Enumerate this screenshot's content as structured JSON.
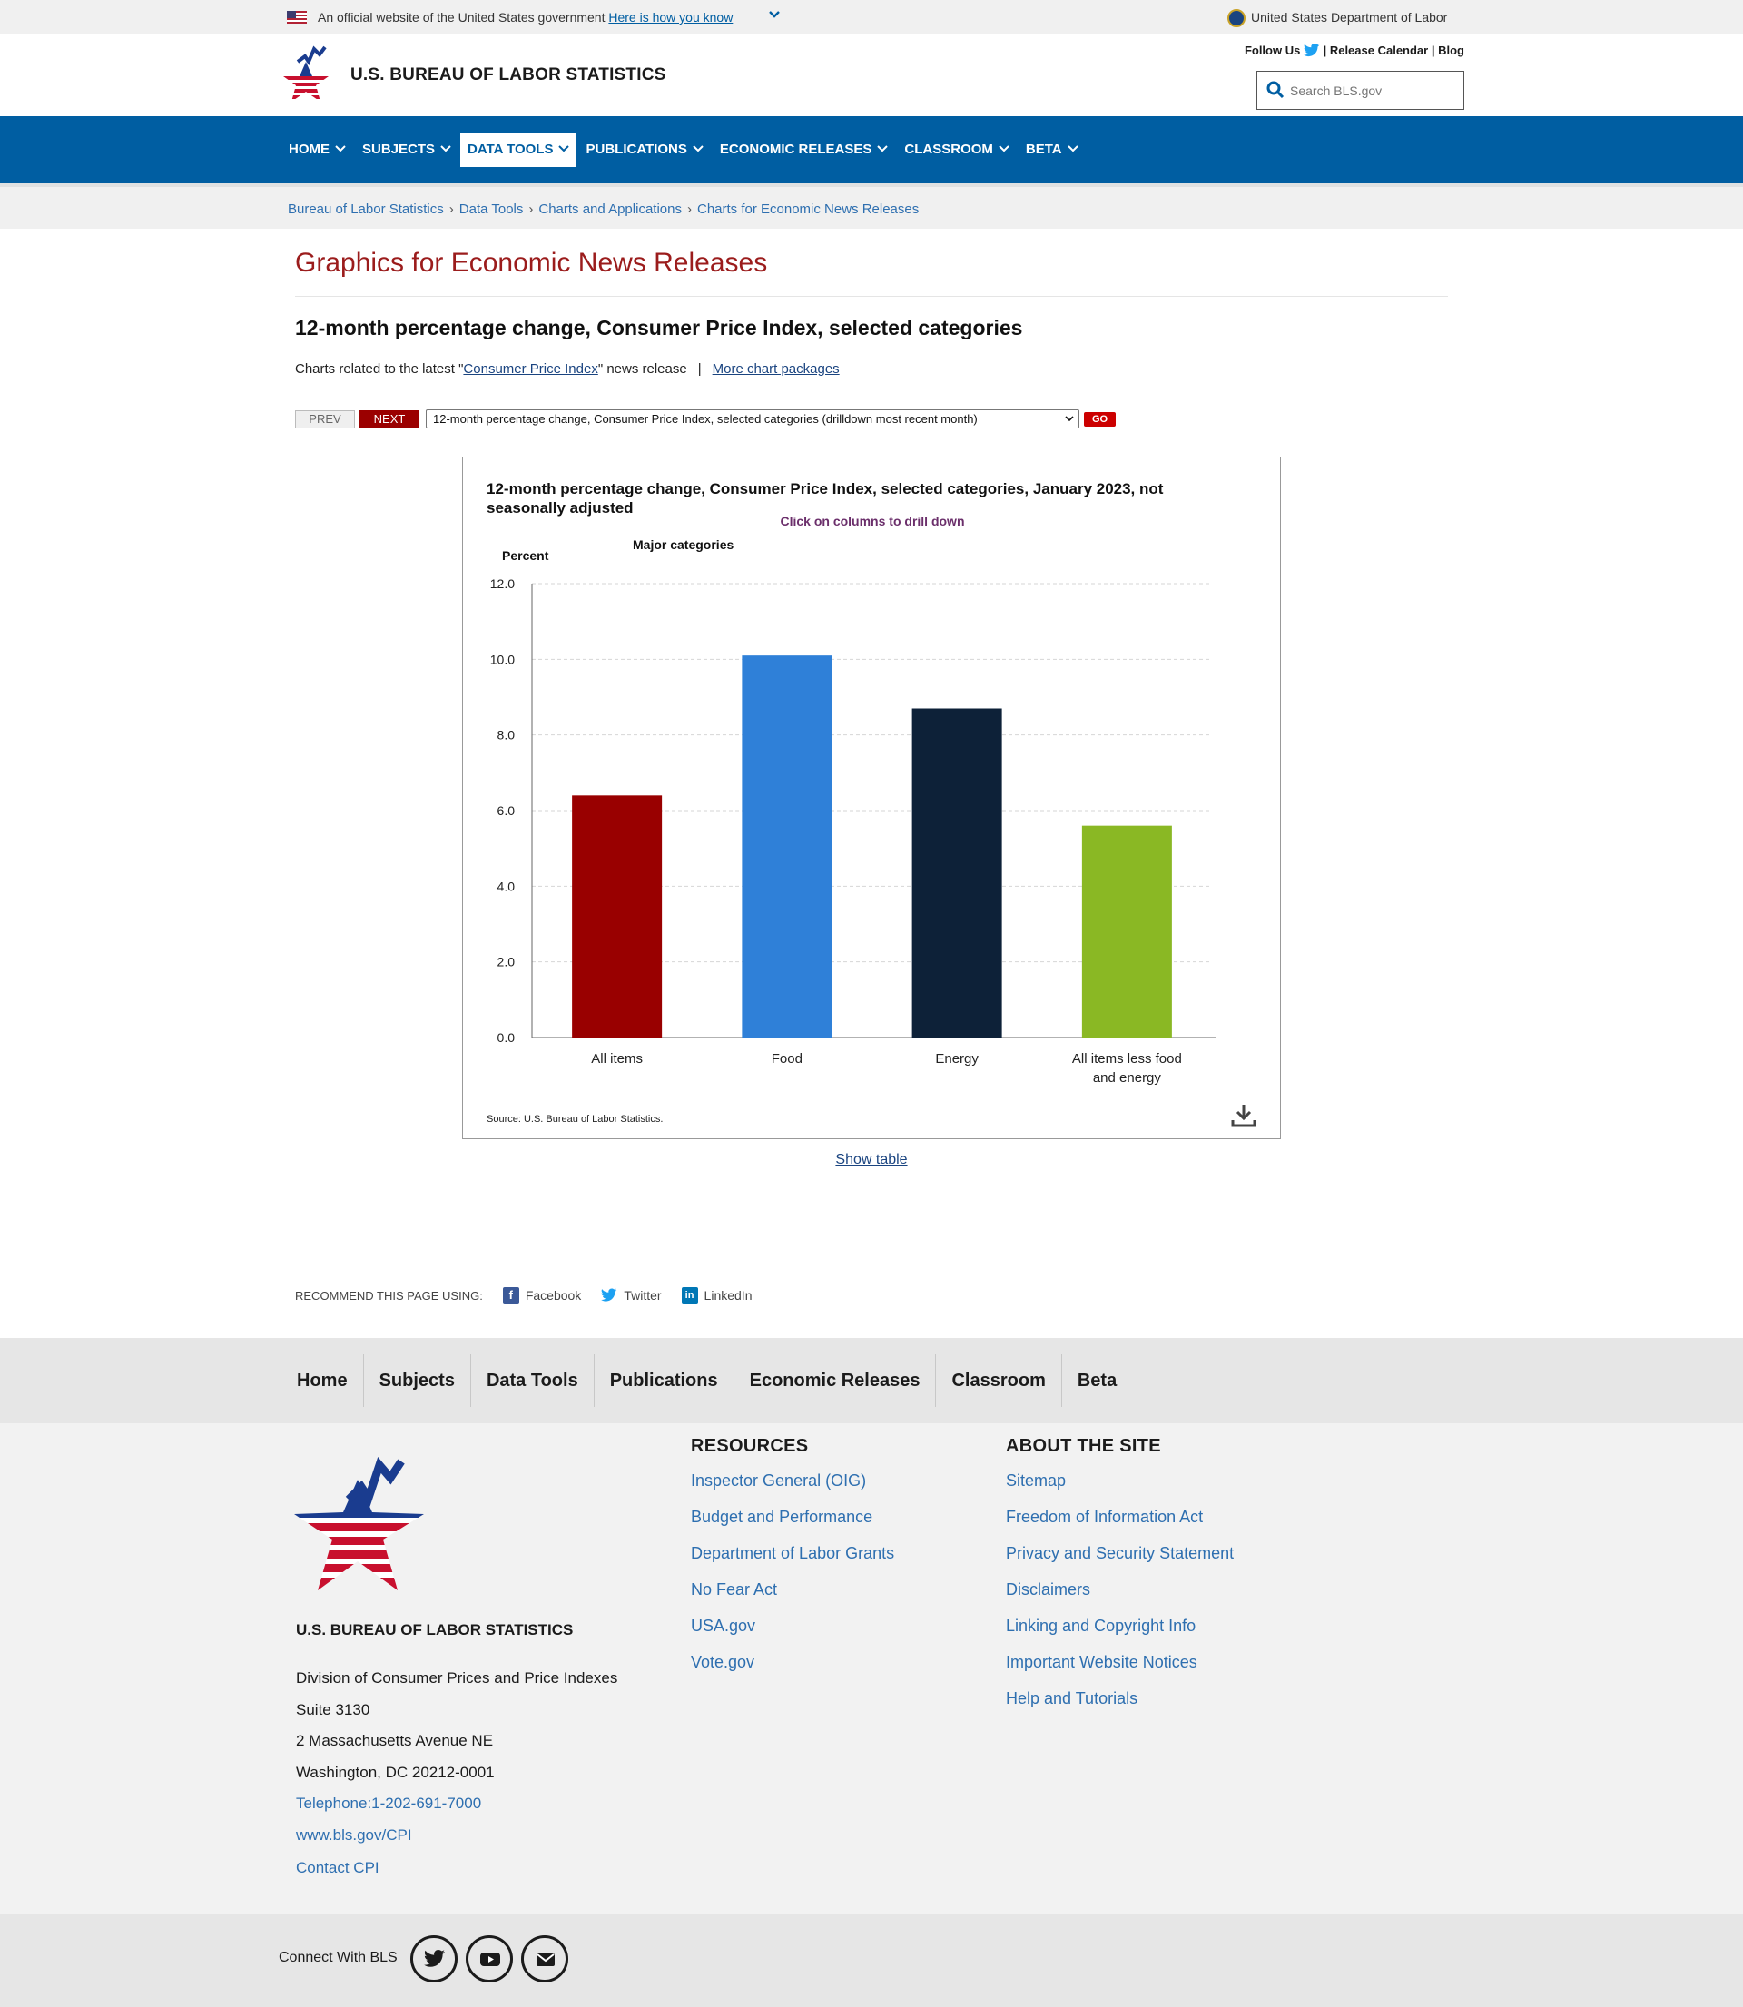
{
  "gov_banner": {
    "official": "An official website of the United States government",
    "how_link": "Here is how you know",
    "department": "United States Department of Labor"
  },
  "header": {
    "site_title": "U.S. BUREAU OF LABOR STATISTICS",
    "follow_us": "Follow Us",
    "release_calendar": "Release Calendar",
    "blog": "Blog",
    "search_placeholder": "Search BLS.gov"
  },
  "nav": {
    "items": [
      {
        "label": "HOME",
        "active": false
      },
      {
        "label": "SUBJECTS",
        "active": false
      },
      {
        "label": "DATA TOOLS",
        "active": true
      },
      {
        "label": "PUBLICATIONS",
        "active": false
      },
      {
        "label": "ECONOMIC RELEASES",
        "active": false
      },
      {
        "label": "CLASSROOM",
        "active": false
      },
      {
        "label": "BETA",
        "active": false
      }
    ]
  },
  "breadcrumb": [
    "Bureau of Labor Statistics",
    "Data Tools",
    "Charts and Applications",
    "Charts for Economic News Releases"
  ],
  "main": {
    "page_title": "Graphics for Economic News Releases",
    "subtitle": "12-month percentage change, Consumer Price Index, selected categories",
    "related_prefix": "Charts related to the latest \"",
    "related_link": "Consumer Price Index",
    "related_suffix": "\" news release",
    "more_packages": "More chart packages",
    "prev": "PREV",
    "next": "NEXT",
    "select_value": "12-month percentage change, Consumer Price Index, selected categories (drilldown most recent month)",
    "go": "GO",
    "show_table": "Show table"
  },
  "chart_data": {
    "type": "bar",
    "title": "12-month percentage change, Consumer Price Index, selected categories, January 2023, not seasonally adjusted",
    "drill_note": "Click on columns to drill down",
    "legend_title": "Major categories",
    "ylabel": "Percent",
    "xlabel": "",
    "categories": [
      "All items",
      "Food",
      "Energy",
      "All items less food and energy"
    ],
    "values": [
      6.4,
      10.1,
      8.7,
      5.6
    ],
    "colors": [
      "#990000",
      "#2f80d8",
      "#0d2138",
      "#8ab824"
    ],
    "ylim": [
      0,
      12
    ],
    "yticks": [
      "0.0",
      "2.0",
      "4.0",
      "6.0",
      "8.0",
      "10.0",
      "12.0"
    ],
    "grid": true,
    "source": "Source: U.S. Bureau of Labor Statistics."
  },
  "recommend": {
    "label": "RECOMMEND THIS PAGE USING:",
    "facebook": "Facebook",
    "twitter": "Twitter",
    "linkedin": "LinkedIn"
  },
  "footer_nav": [
    "Home",
    "Subjects",
    "Data Tools",
    "Publications",
    "Economic Releases",
    "Classroom",
    "Beta"
  ],
  "footer": {
    "title": "U.S. BUREAU OF LABOR STATISTICS",
    "address_lines": [
      "Division of Consumer Prices and Price Indexes",
      "Suite 3130",
      "2 Massachusetts Avenue NE",
      "Washington, DC 20212-0001"
    ],
    "telephone": "Telephone:1-202-691-7000",
    "website": "www.bls.gov/CPI",
    "contact": "Contact CPI",
    "resources_title": "RESOURCES",
    "resources": [
      "Inspector General (OIG)",
      "Budget and Performance",
      "Department of Labor Grants",
      "No Fear Act",
      "USA.gov",
      "Vote.gov"
    ],
    "about_title": "ABOUT THE SITE",
    "about": [
      "Sitemap",
      "Freedom of Information Act",
      "Privacy and Security Statement",
      "Disclaimers",
      "Linking and Copyright Info",
      "Important Website Notices",
      "Help and Tutorials"
    ],
    "connect": "Connect With BLS"
  }
}
